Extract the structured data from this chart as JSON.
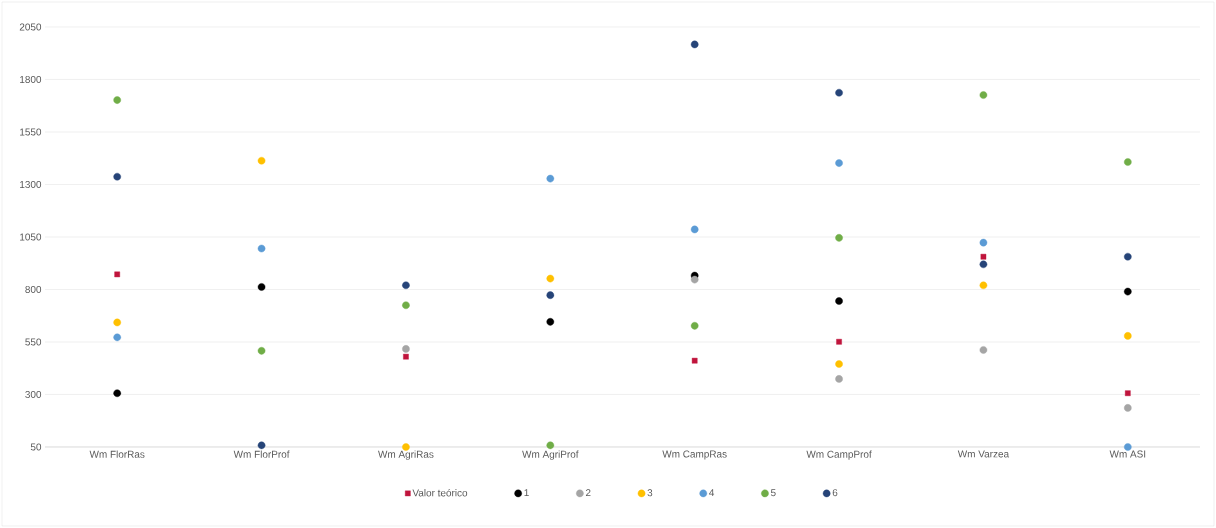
{
  "chart_data": {
    "type": "scatter",
    "categories": [
      "Wm FlorRas",
      "Wm FlorProf",
      "Wm AgriRas",
      "Wm AgriProf",
      "Wm CampRas",
      "Wm CampProf",
      "Wm Varzea",
      "Wm ASI"
    ],
    "series": [
      {
        "name": "Valor teórico",
        "color": "#c0143c",
        "marker": "square",
        "values": [
          872,
          null,
          480,
          null,
          461,
          551,
          956,
          306
        ]
      },
      {
        "name": "1",
        "color": "#000000",
        "marker": "circle",
        "values": [
          306,
          812,
          null,
          646,
          866,
          745,
          null,
          790
        ]
      },
      {
        "name": "2",
        "color": "#a5a5a5",
        "marker": "circle",
        "values": [
          null,
          null,
          517,
          null,
          847,
          374,
          512,
          236
        ]
      },
      {
        "name": "3",
        "color": "#ffc000",
        "marker": "circle",
        "values": [
          643,
          1413,
          50,
          852,
          null,
          445,
          820,
          579
        ]
      },
      {
        "name": "4",
        "color": "#5b9bd5",
        "marker": "circle",
        "values": [
          572,
          995,
          null,
          1328,
          1086,
          1402,
          1023,
          50
        ]
      },
      {
        "name": "5",
        "color": "#70ad47",
        "marker": "circle",
        "values": [
          1702,
          508,
          725,
          58,
          627,
          1046,
          1726,
          1407
        ]
      },
      {
        "name": "6",
        "color": "#264478",
        "marker": "circle",
        "values": [
          1337,
          58,
          820,
          773,
          1967,
          1737,
          920,
          956
        ]
      }
    ],
    "ylim": [
      50,
      2050
    ],
    "yticks": [
      50,
      300,
      550,
      800,
      1050,
      1300,
      1550,
      1800,
      2050
    ],
    "grid": "y",
    "legend": "bottom"
  }
}
